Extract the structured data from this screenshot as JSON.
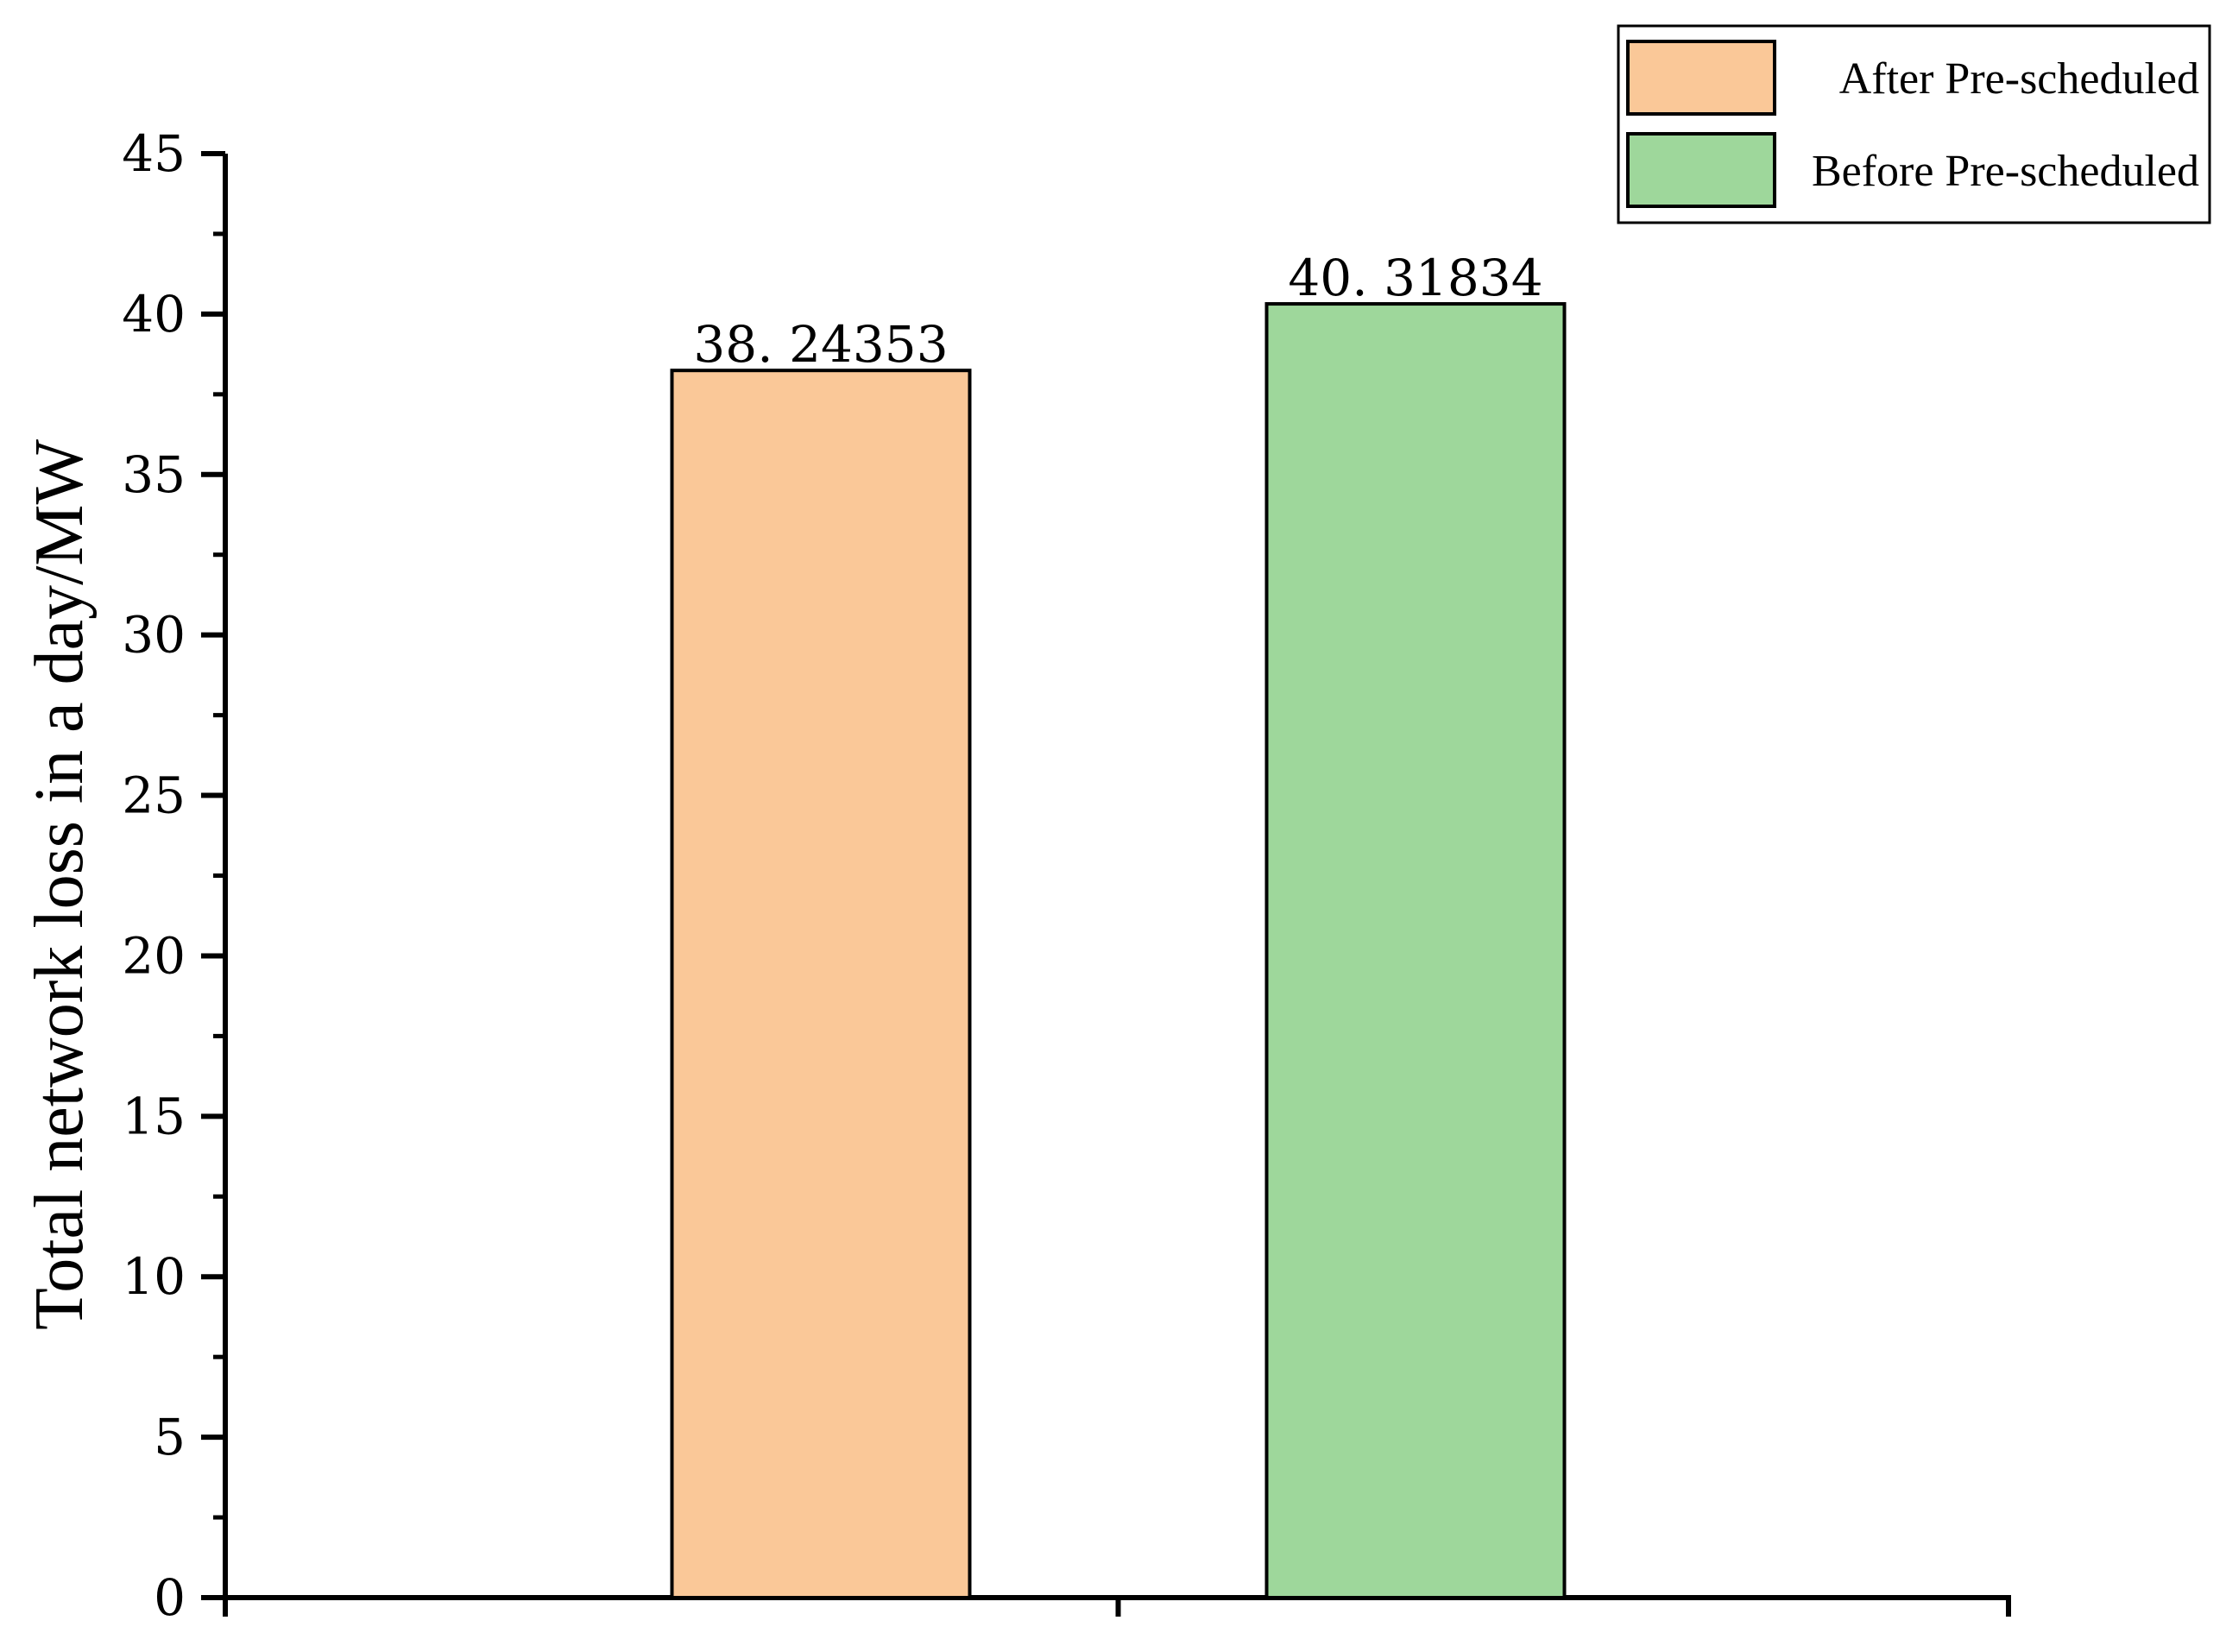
{
  "chart_data": {
    "type": "bar",
    "title": "",
    "xlabel": "",
    "ylabel": "Total network loss in a day/MW",
    "ylim": [
      0,
      45
    ],
    "yticks": [
      0,
      5,
      10,
      15,
      20,
      25,
      30,
      35,
      40,
      45
    ],
    "y_minor_tick_step": 2.5,
    "grid": false,
    "legend_position": "top-right",
    "series": [
      {
        "name": "After Pre-scheduled",
        "value": 38.24353,
        "data_label": "38. 24353",
        "color": "#FAC898"
      },
      {
        "name": "Before Pre-scheduled",
        "value": 40.31834,
        "data_label": "40. 31834",
        "color": "#9ED79B"
      }
    ]
  }
}
